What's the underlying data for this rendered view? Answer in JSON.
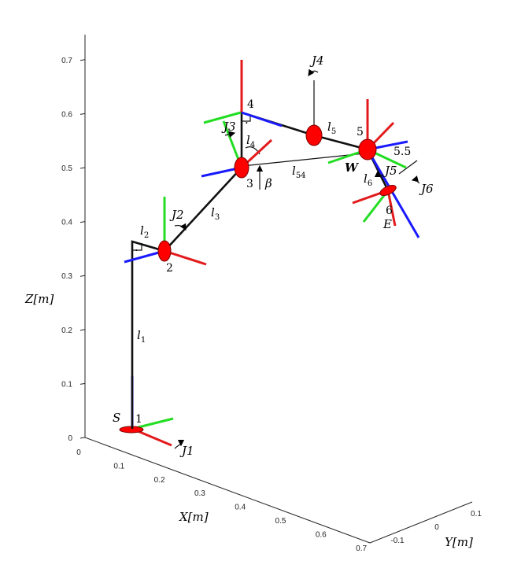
{
  "axes": {
    "z_label": "Z[m]",
    "x_label": "X[m]",
    "y_label": "Y[m]",
    "z_ticks": [
      "0",
      "0.1",
      "0.2",
      "0.3",
      "0.4",
      "0.5",
      "0.6",
      "0.7"
    ],
    "x_ticks": [
      "0",
      "0.1",
      "0.2",
      "0.3",
      "0.4",
      "0.5",
      "0.6",
      "0.7"
    ],
    "y_ticks": [
      "-0.1",
      "0",
      "0.1"
    ]
  },
  "frames": [
    "1",
    "2",
    "3",
    "4",
    "5",
    "5.5",
    "6"
  ],
  "points": {
    "base": "S",
    "wrist": "W",
    "end_effector": "E"
  },
  "joints": [
    "J1",
    "J2",
    "J3",
    "J4",
    "J5",
    "J6"
  ],
  "links": {
    "l1": "l",
    "l1_sub": "1",
    "l2": "l",
    "l2_sub": "2",
    "l3": "l",
    "l3_sub": "3",
    "l4": "l",
    "l4_sub": "4",
    "l5": "l",
    "l5_sub": "5",
    "l54": "l",
    "l54_sub": "54",
    "l6": "l",
    "l6_sub": "6"
  },
  "angle_label": "β",
  "right_angle_mark": "·",
  "colors": {
    "x_axis": "#e31a1c",
    "y_axis": "#22dd22",
    "z_axis": "#1a1aff",
    "joint_disc": "#ff0000"
  }
}
